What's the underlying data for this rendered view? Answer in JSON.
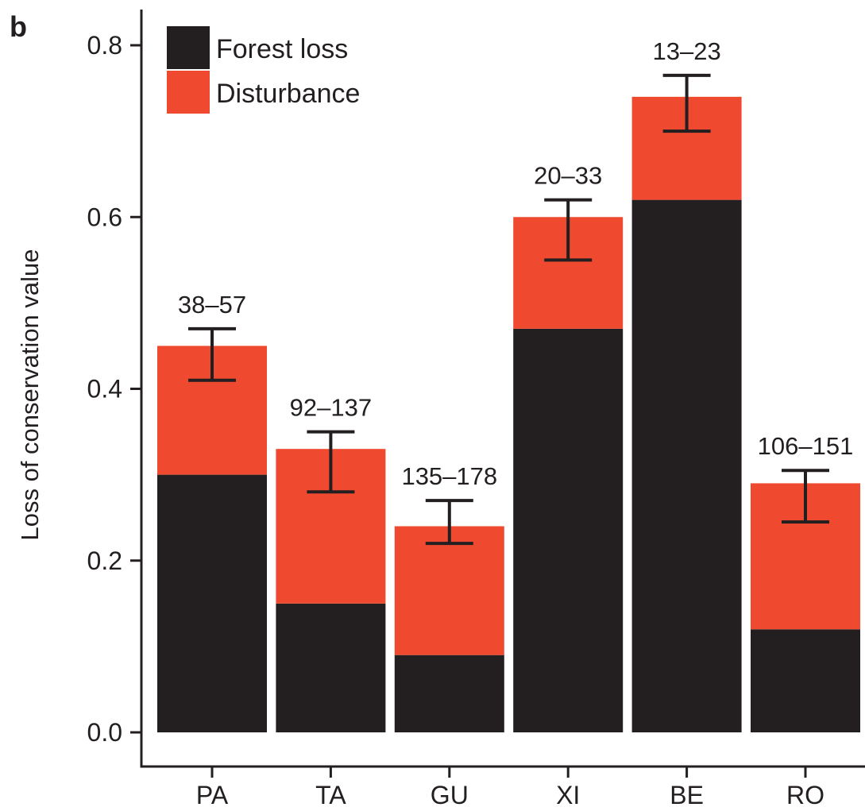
{
  "panel_label": "b",
  "chart_data": {
    "type": "bar",
    "stacked": true,
    "categories": [
      "PA",
      "TA",
      "GU",
      "XI",
      "BE",
      "RO"
    ],
    "series": [
      {
        "name": "Forest loss",
        "color": "#231f20",
        "values": [
          0.3,
          0.15,
          0.09,
          0.47,
          0.62,
          0.12
        ]
      },
      {
        "name": "Disturbance",
        "color": "#ef4a2f",
        "values": [
          0.15,
          0.18,
          0.15,
          0.13,
          0.12,
          0.17
        ]
      }
    ],
    "error_bars": [
      {
        "low": 0.41,
        "high": 0.47
      },
      {
        "low": 0.28,
        "high": 0.35
      },
      {
        "low": 0.22,
        "high": 0.27
      },
      {
        "low": 0.55,
        "high": 0.62
      },
      {
        "low": 0.7,
        "high": 0.765
      },
      {
        "low": 0.245,
        "high": 0.305
      }
    ],
    "bar_annotations": [
      "38–57",
      "92–137",
      "135–178",
      "20–33",
      "13–23",
      "106–151"
    ],
    "ylabel": "Loss of conservation value",
    "xlabel": "",
    "title": "",
    "ylim": [
      0,
      0.83
    ],
    "yticks": [
      0.0,
      0.2,
      0.4,
      0.6,
      0.8
    ],
    "ytick_labels": [
      "0.0",
      "0.2",
      "0.4",
      "0.6",
      "0.8"
    ],
    "grid": false,
    "legend_position": "top-left"
  }
}
